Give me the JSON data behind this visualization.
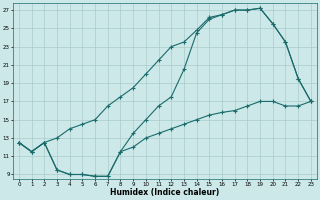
{
  "xlabel": "Humidex (Indice chaleur)",
  "bg_color": "#cce8e8",
  "grid_color": "#aacccc",
  "line_color": "#1a6b6b",
  "xlim": [
    -0.5,
    23.5
  ],
  "ylim": [
    8.5,
    27.8
  ],
  "xticks": [
    0,
    1,
    2,
    3,
    4,
    5,
    6,
    7,
    8,
    9,
    10,
    11,
    12,
    13,
    14,
    15,
    16,
    17,
    18,
    19,
    20,
    21,
    22,
    23
  ],
  "yticks": [
    9,
    11,
    13,
    15,
    17,
    19,
    21,
    23,
    25,
    27
  ],
  "line1_x": [
    0,
    1,
    2,
    3,
    4,
    5,
    6,
    7,
    8,
    9,
    10,
    11,
    12,
    13,
    14,
    15,
    16,
    17,
    18,
    19,
    20,
    21,
    22,
    23
  ],
  "line1_y": [
    12.5,
    11.5,
    12.5,
    9.5,
    9.0,
    9.0,
    8.8,
    8.8,
    11.5,
    13.5,
    15.0,
    16.5,
    17.5,
    20.5,
    24.5,
    26.0,
    26.5,
    27.0,
    27.0,
    27.2,
    25.5,
    23.5,
    19.5,
    17.0
  ],
  "line2_x": [
    0,
    1,
    2,
    3,
    4,
    5,
    6,
    7,
    8,
    9,
    10,
    11,
    12,
    13,
    14,
    15,
    16,
    17,
    18,
    19,
    20,
    21,
    22,
    23
  ],
  "line2_y": [
    12.5,
    11.5,
    12.5,
    13.0,
    14.0,
    14.5,
    15.0,
    16.5,
    17.5,
    18.5,
    20.0,
    21.5,
    23.0,
    23.5,
    24.8,
    26.2,
    26.5,
    27.0,
    27.0,
    27.2,
    25.5,
    23.5,
    19.5,
    17.0
  ],
  "line3_x": [
    0,
    1,
    2,
    3,
    4,
    5,
    6,
    7,
    8,
    9,
    10,
    11,
    12,
    13,
    14,
    15,
    16,
    17,
    18,
    19,
    20,
    21,
    22,
    23
  ],
  "line3_y": [
    12.5,
    11.5,
    12.5,
    9.5,
    9.0,
    9.0,
    8.8,
    8.8,
    11.5,
    12.0,
    13.0,
    13.5,
    14.0,
    14.5,
    15.0,
    15.5,
    15.8,
    16.0,
    16.5,
    17.0,
    17.0,
    16.5,
    16.5,
    17.0
  ]
}
